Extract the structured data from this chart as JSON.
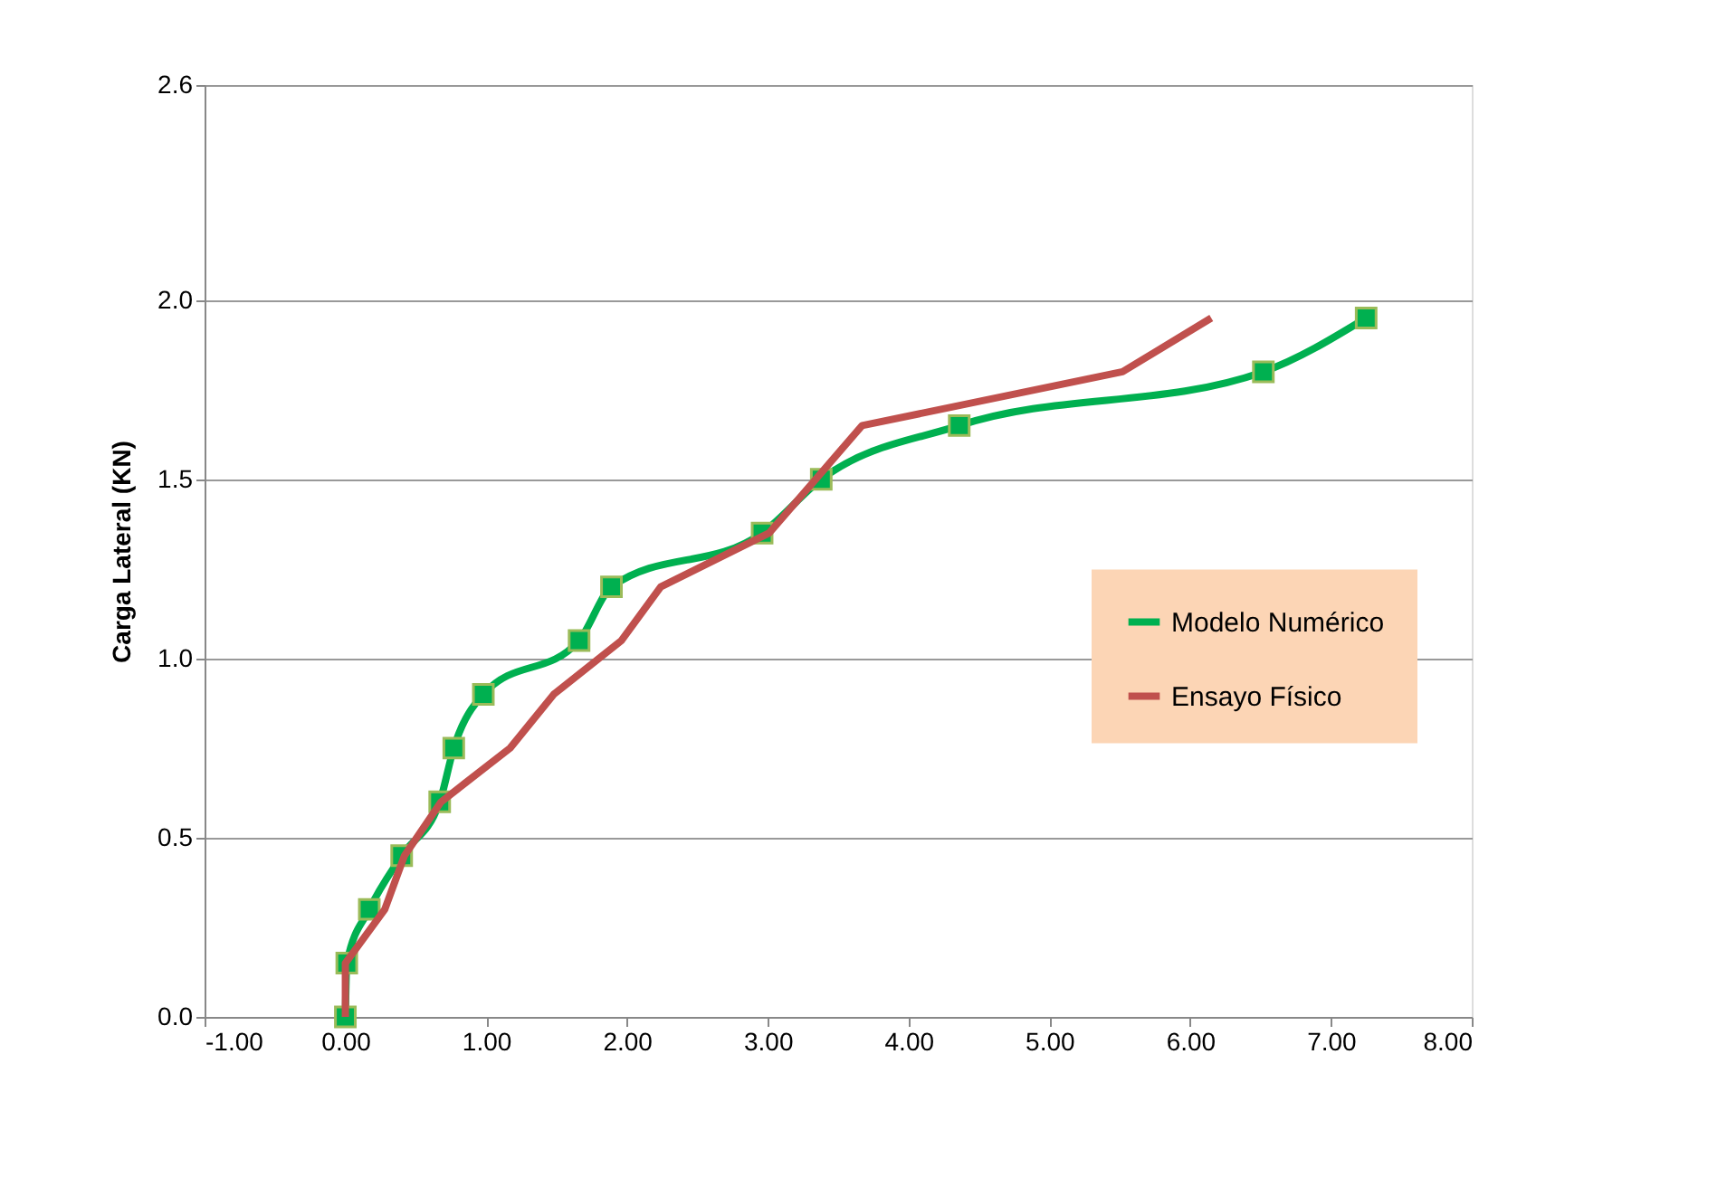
{
  "chart_data": {
    "type": "line",
    "ylabel": "Carga Lateral (KN)",
    "xlim": [
      -1,
      8
    ],
    "xticks": [
      {
        "value": -1,
        "label": "-1.00"
      },
      {
        "value": 0,
        "label": "0.00"
      },
      {
        "value": 1,
        "label": "1.00"
      },
      {
        "value": 2,
        "label": "2.00"
      },
      {
        "value": 3,
        "label": "3.00"
      },
      {
        "value": 4,
        "label": "4.00"
      },
      {
        "value": 5,
        "label": "5.00"
      },
      {
        "value": 6,
        "label": "6.00"
      },
      {
        "value": 7,
        "label": "7.00"
      },
      {
        "value": 8,
        "label": "8.00"
      }
    ],
    "ylim": [
      0,
      2.6
    ],
    "yticks": [
      {
        "value": 0,
        "label": "0.0"
      },
      0.5,
      {
        "value": 1,
        "label": "1.0"
      },
      1.5,
      {
        "value": 2,
        "label": "2.0"
      },
      2.6
    ],
    "grid": "y",
    "legend": "right",
    "line_style": "solid",
    "series": [
      {
        "name": "Modelo Numérico",
        "color": "#00b050",
        "marker": "square",
        "x": [
          0,
          0.01,
          0.17,
          0.4,
          0.67,
          0.77,
          0.98,
          1.66,
          1.89,
          2.96,
          3.38,
          4.36,
          6.52,
          7.25
        ],
        "values": [
          0,
          0.15,
          0.3,
          0.45,
          0.6,
          0.75,
          0.9,
          1.05,
          1.2,
          1.35,
          1.5,
          1.65,
          1.8,
          1.95
        ]
      },
      {
        "name": "Ensayo Físico",
        "color": "#c0504d",
        "marker": "none",
        "x": [
          0,
          0,
          0.28,
          0.42,
          0.68,
          1.17,
          1.48,
          1.96,
          2.24,
          3.01,
          3.34,
          3.67,
          5.52,
          6.15
        ],
        "values": [
          0,
          0.15,
          0.3,
          0.45,
          0.6,
          0.75,
          0.9,
          1.05,
          1.2,
          1.35,
          1.5,
          1.65,
          1.8,
          1.95
        ]
      }
    ]
  }
}
